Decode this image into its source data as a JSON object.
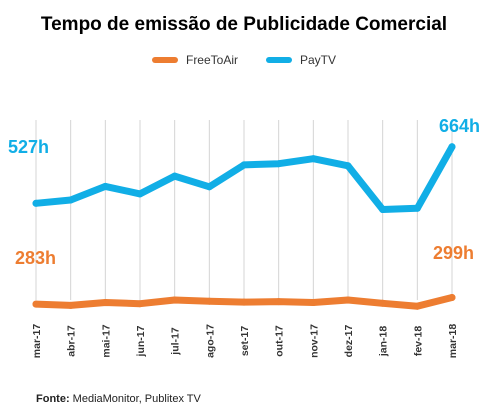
{
  "chart_data": {
    "type": "line",
    "title": "Tempo de emissão de Publicidade Comercial",
    "categories": [
      "mar-17",
      "abr-17",
      "mai-17",
      "jun-17",
      "jul-17",
      "ago-17",
      "set-17",
      "out-17",
      "nov-17",
      "dez-17",
      "jan-18",
      "fev-18",
      "mar-18"
    ],
    "series": [
      {
        "name": "FreeToAir",
        "color": "#ed7d31",
        "values": [
          283,
          280,
          287,
          284,
          293,
          290,
          288,
          289,
          287,
          293,
          285,
          278,
          299
        ]
      },
      {
        "name": "PayTV",
        "color": "#11aee6",
        "values": [
          527,
          535,
          568,
          550,
          593,
          567,
          620,
          623,
          635,
          618,
          512,
          515,
          664
        ]
      }
    ],
    "annotations": {
      "paytv_start": "527h",
      "paytv_end": "664h",
      "freetoair_start": "283h",
      "freetoair_end": "299h"
    },
    "legend_position": "top-center",
    "grid": "vertical"
  },
  "source": {
    "label": "Fonte:",
    "text": " MediaMonitor, Publitex TV"
  }
}
